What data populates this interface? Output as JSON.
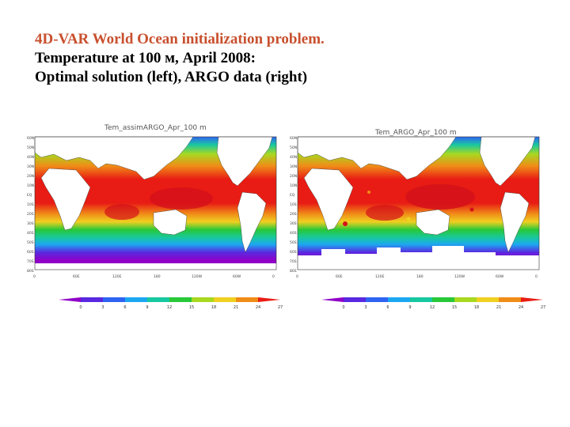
{
  "title": {
    "line1": "4D-VAR World Ocean initialization problem.",
    "line2": "Temperature at 100 м, April 2008:",
    "line3": "Optimal solution (left), ARGO data (right)"
  },
  "maps": [
    {
      "title": "Tem_assimARGO_Apr_100  m"
    },
    {
      "title": "Tem_ARGO_Apr_100  m"
    }
  ],
  "lat_ticks": [
    "60N",
    "50N",
    "40N",
    "30N",
    "20N",
    "10N",
    "EQ",
    "10S",
    "20S",
    "30S",
    "40S",
    "50S",
    "60S",
    "70S",
    "80S"
  ],
  "lon_ticks": [
    "0",
    "60E",
    "120E",
    "180",
    "120W",
    "60W",
    "0"
  ],
  "colorbar": {
    "labels": [
      "0",
      "3",
      "6",
      "9",
      "12",
      "15",
      "18",
      "21",
      "24",
      "27"
    ],
    "colors": [
      "#9000c8",
      "#5a28e0",
      "#2f64f2",
      "#1ca8f0",
      "#18c8a0",
      "#28c838",
      "#a8d820",
      "#f0d020",
      "#f08c18",
      "#e81c14"
    ]
  },
  "colors": {
    "title_accent": "#c8502e",
    "land": "#ffffff"
  }
}
